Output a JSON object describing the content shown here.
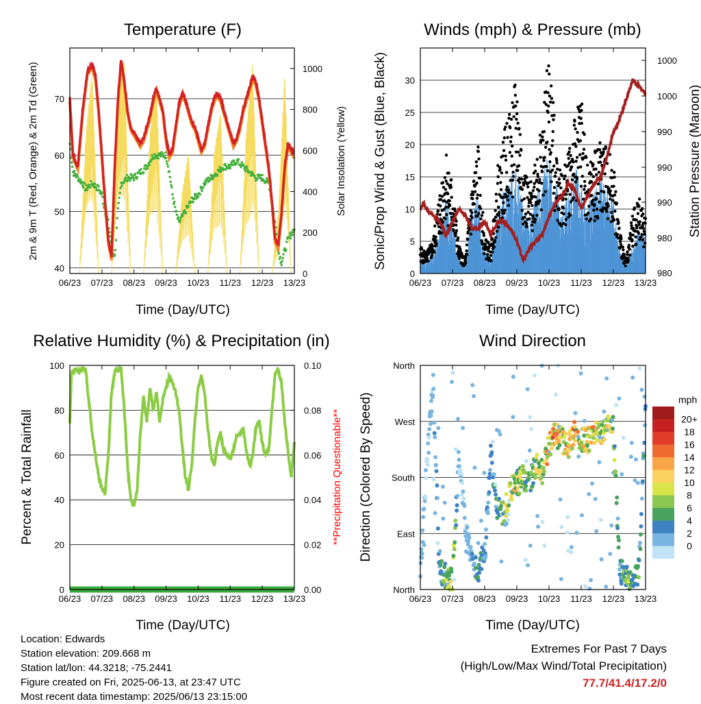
{
  "info": {
    "location": "Location: Edwards",
    "elevation": "Station elevation: 209.668 m",
    "latlon": "Station lat/lon: 44.3218; -75.2441",
    "created": "Figure created on Fri, 2025-06-13, at 23:47 UTC",
    "recent": "Most recent data timestamp: 2025/06/13 23:15:00"
  },
  "extremes": {
    "line1": "Extremes For Past 7 Days",
    "line2": "(High/Low/Max Wind/Total Precipitation)",
    "values": "77.7/41.4/17.2/0"
  },
  "colors": {
    "temp": "#d42222",
    "temp9m": "#f08a28",
    "dewpoint": "#44b03c",
    "solar": "#f5dc60",
    "wind": "#4e95d6",
    "gust": "#000000",
    "pressure": "#a32020",
    "rh": "#8ccc44",
    "precip": "#3aa83a",
    "questionable": "#ff0000"
  },
  "chart_data": [
    {
      "type": "line",
      "title": "Temperature (F)",
      "xlabel": "Time (Day/UTC)",
      "ylabel": "2m & 9m T (Red, Orange) & 2m Td (Green)",
      "ylabel_right": "Solar Insolation (Yellow)",
      "x_ticks": [
        "06/23",
        "07/23",
        "08/23",
        "09/23",
        "10/23",
        "11/23",
        "12/23",
        "13/23"
      ],
      "y_ticks": [
        "40",
        "50",
        "60",
        "70"
      ],
      "y2_ticks": [
        "0",
        "200",
        "400",
        "600",
        "800",
        "1000"
      ],
      "ylim": [
        39,
        79
      ],
      "y2lim": [
        0,
        1100
      ],
      "series": [
        {
          "name": "2m T",
          "x": [
            0,
            0.1,
            0.25,
            0.4,
            0.55,
            0.7,
            0.8,
            0.9,
            1.0,
            1.1,
            1.2,
            1.3,
            1.4,
            1.5,
            1.6,
            1.7,
            1.8,
            1.9,
            2.0,
            2.1,
            2.2,
            2.3,
            2.4,
            2.5,
            2.6,
            2.7,
            2.8,
            2.9,
            3.0,
            3.1,
            3.2,
            3.3,
            3.4,
            3.5,
            3.6,
            3.7,
            3.8,
            3.9,
            4.0,
            4.1,
            4.2,
            4.3,
            4.4,
            4.5,
            4.6,
            4.7,
            4.8,
            4.9,
            5.0,
            5.1,
            5.2,
            5.3,
            5.4,
            5.5,
            5.6,
            5.7,
            5.8,
            5.9,
            6.0,
            6.1,
            6.2,
            6.3,
            6.4,
            6.5,
            6.6,
            6.7,
            6.8,
            6.9,
            7.0
          ],
          "y": [
            70,
            60,
            58,
            68,
            75,
            76,
            74,
            68,
            60,
            52,
            45,
            42,
            58,
            70,
            77,
            73,
            68,
            65,
            64,
            63,
            62,
            63,
            65,
            67,
            70,
            72,
            70,
            68,
            63,
            60,
            61,
            65,
            69,
            71,
            70,
            68,
            66,
            65,
            63,
            61,
            62,
            65,
            68,
            70,
            71,
            70,
            68,
            66,
            64,
            62,
            63,
            65,
            68,
            70,
            72,
            74,
            73,
            70,
            66,
            62,
            58,
            52,
            45,
            44,
            50,
            58,
            62,
            61,
            60
          ]
        },
        {
          "name": "9m T",
          "x": [
            0,
            0.25,
            0.55,
            1.0,
            1.4,
            1.6,
            2.0,
            2.5,
            3.0,
            3.5,
            4.0,
            4.5,
            5.0,
            5.5,
            6.0,
            6.4,
            6.7,
            7.0
          ],
          "y": [
            70,
            58,
            73,
            60,
            56,
            76,
            63,
            67,
            63,
            70,
            63,
            70,
            63,
            72,
            65,
            46,
            58,
            60
          ]
        },
        {
          "name": "2m Td",
          "x": [
            0,
            0.1,
            0.25,
            0.4,
            0.5,
            0.7,
            0.9,
            1.0,
            1.1,
            1.2,
            1.3,
            1.4,
            1.5,
            1.6,
            1.8,
            2.0,
            2.2,
            2.4,
            2.6,
            2.8,
            3.0,
            3.1,
            3.2,
            3.3,
            3.4,
            3.6,
            3.8,
            4.0,
            4.2,
            4.4,
            4.6,
            4.8,
            5.0,
            5.2,
            5.4,
            5.6,
            5.8,
            6.0,
            6.2,
            6.3,
            6.4,
            6.5,
            6.6,
            6.7,
            6.8,
            7.0
          ],
          "y": [
            62,
            57,
            56,
            55,
            54,
            55,
            54,
            53,
            50,
            48,
            44,
            42,
            50,
            55,
            56,
            56,
            57,
            58,
            60,
            60,
            60,
            57,
            53,
            50,
            48,
            50,
            52,
            53,
            55,
            56,
            57,
            58,
            58,
            59,
            58,
            57,
            56,
            56,
            55,
            52,
            48,
            43,
            41,
            43,
            45,
            47
          ]
        },
        {
          "name": "Solar",
          "x": [
            0,
            0.3,
            0.5,
            0.7,
            0.9,
            1.3,
            1.5,
            1.7,
            1.9,
            2.3,
            2.5,
            2.7,
            2.9,
            3.3,
            3.5,
            3.7,
            3.9,
            4.3,
            4.5,
            4.7,
            4.9,
            5.3,
            5.5,
            5.7,
            5.9,
            6.3,
            6.5,
            6.7,
            6.9,
            7.0
          ],
          "y": [
            0,
            0,
            700,
            1000,
            0,
            0,
            900,
            1050,
            0,
            0,
            700,
            950,
            0,
            0,
            400,
            600,
            0,
            0,
            600,
            800,
            0,
            0,
            700,
            1050,
            0,
            0,
            300,
            1000,
            0,
            0
          ]
        }
      ]
    },
    {
      "type": "line",
      "title": "Winds (mph) & Pressure (mb)",
      "xlabel": "Time (Day/UTC)",
      "ylabel": "Sonic/Prop Wind & Gust (Blue, Black)",
      "ylabel_right": "Station Pressure (Maroon)",
      "x_ticks": [
        "06/23",
        "07/23",
        "08/23",
        "09/23",
        "10/23",
        "11/23",
        "12/23",
        "13/23"
      ],
      "y_ticks": [
        "0",
        "5",
        "10",
        "15",
        "20",
        "25",
        "30"
      ],
      "y2_ticks": [
        "980",
        "980",
        "990",
        "990",
        "990",
        "1000",
        "1000"
      ],
      "ylim": [
        0,
        35
      ],
      "series": [
        {
          "name": "Wind",
          "x": [
            0,
            0.2,
            0.4,
            0.6,
            0.8,
            1.0,
            1.2,
            1.4,
            1.6,
            1.8,
            2.0,
            2.2,
            2.4,
            2.6,
            2.8,
            3.0,
            3.2,
            3.4,
            3.6,
            3.8,
            4.0,
            4.2,
            4.4,
            4.6,
            4.8,
            5.0,
            5.2,
            5.4,
            5.6,
            5.8,
            6.0,
            6.2,
            6.4,
            6.6,
            6.8,
            7.0
          ],
          "y": [
            2,
            2,
            3,
            6,
            10,
            9,
            2,
            1,
            9,
            10,
            3,
            2,
            8,
            11,
            13,
            14,
            9,
            7,
            10,
            13,
            16,
            13,
            8,
            11,
            14,
            12,
            9,
            11,
            13,
            12,
            10,
            3,
            1,
            4,
            6,
            5
          ]
        },
        {
          "name": "Gust",
          "x": [
            0,
            0.2,
            0.4,
            0.6,
            0.8,
            1.0,
            1.2,
            1.4,
            1.6,
            1.8,
            2.0,
            2.2,
            2.4,
            2.6,
            2.8,
            3.0,
            3.2,
            3.4,
            3.6,
            3.8,
            4.0,
            4.2,
            4.4,
            4.6,
            4.8,
            5.0,
            5.2,
            5.4,
            5.6,
            5.8,
            6.0,
            6.2,
            6.4,
            6.6,
            6.8,
            7.0
          ],
          "y": [
            4,
            3,
            5,
            12,
            18,
            13,
            4,
            2,
            13,
            18,
            5,
            4,
            15,
            20,
            24,
            28,
            16,
            12,
            18,
            22,
            32,
            20,
            14,
            18,
            22,
            26,
            15,
            17,
            19,
            18,
            16,
            6,
            2,
            9,
            11,
            8
          ]
        },
        {
          "name": "Pressure",
          "x": [
            0,
            0.1,
            0.2,
            0.4,
            0.6,
            0.8,
            1.0,
            1.2,
            1.4,
            1.6,
            1.8,
            2.0,
            2.2,
            2.4,
            2.6,
            2.8,
            3.0,
            3.2,
            3.4,
            3.6,
            3.8,
            4.0,
            4.2,
            4.4,
            4.6,
            4.8,
            5.0,
            5.2,
            5.4,
            5.6,
            5.8,
            6.0,
            6.2,
            6.4,
            6.6,
            6.8,
            7.0
          ],
          "y": [
            10,
            11,
            10,
            9,
            8,
            6,
            8,
            10,
            9,
            7,
            7,
            8,
            6,
            8,
            8,
            7,
            5,
            2,
            4,
            5,
            6,
            9,
            11,
            12,
            14,
            13,
            10,
            12,
            14,
            15,
            18,
            22,
            24,
            27,
            30,
            29,
            28
          ]
        }
      ]
    },
    {
      "type": "line",
      "title": "Relative Humidity (%) & Precipitation (in)",
      "xlabel": "Time (Day/UTC)",
      "ylabel": "Percent & Total Rainfall",
      "ylabel_right": "**Precipitation Questionable**",
      "x_ticks": [
        "06/23",
        "07/23",
        "08/23",
        "09/23",
        "10/23",
        "11/23",
        "12/23",
        "13/23"
      ],
      "y_ticks": [
        "0",
        "20",
        "40",
        "60",
        "80",
        "100"
      ],
      "y2_ticks": [
        "0.00",
        "0.02",
        "0.04",
        "0.06",
        "0.08",
        "0.10"
      ],
      "ylim": [
        0,
        100
      ],
      "y2lim": [
        0,
        0.1
      ],
      "series": [
        {
          "name": "RH",
          "x": [
            0,
            0.05,
            0.15,
            0.3,
            0.5,
            0.55,
            0.7,
            0.9,
            1.0,
            1.1,
            1.2,
            1.3,
            1.4,
            1.5,
            1.6,
            1.7,
            1.8,
            1.9,
            2.0,
            2.1,
            2.2,
            2.3,
            2.4,
            2.5,
            2.6,
            2.7,
            2.8,
            2.9,
            3.0,
            3.1,
            3.2,
            3.3,
            3.4,
            3.5,
            3.6,
            3.7,
            3.8,
            3.9,
            4.0,
            4.1,
            4.2,
            4.3,
            4.4,
            4.5,
            4.6,
            4.7,
            4.8,
            4.9,
            5.0,
            5.1,
            5.2,
            5.3,
            5.4,
            5.5,
            5.6,
            5.7,
            5.8,
            5.9,
            6.0,
            6.1,
            6.2,
            6.3,
            6.4,
            6.5,
            6.6,
            6.7,
            6.8,
            6.9,
            7.0
          ],
          "y": [
            75,
            96,
            98,
            98,
            98,
            90,
            70,
            50,
            45,
            43,
            60,
            88,
            97,
            98,
            98,
            80,
            55,
            40,
            37,
            45,
            70,
            86,
            75,
            90,
            80,
            88,
            75,
            85,
            90,
            95,
            92,
            88,
            80,
            65,
            50,
            45,
            55,
            75,
            90,
            95,
            88,
            72,
            60,
            55,
            65,
            70,
            62,
            60,
            58,
            62,
            68,
            70,
            72,
            62,
            55,
            60,
            72,
            75,
            65,
            60,
            62,
            80,
            96,
            98,
            92,
            75,
            62,
            50,
            65
          ]
        },
        {
          "name": "Precip",
          "x": [
            0,
            7
          ],
          "y": [
            0,
            0
          ]
        }
      ]
    },
    {
      "type": "scatter",
      "title": "Wind Direction",
      "xlabel": "Time (Day/UTC)",
      "ylabel": "Direction (Colored By Speed)",
      "x_ticks": [
        "06/23",
        "07/23",
        "08/23",
        "09/23",
        "10/23",
        "11/23",
        "12/23",
        "13/23"
      ],
      "y_ticks": [
        "North",
        "East",
        "South",
        "West",
        "North"
      ],
      "ylim": [
        0,
        360
      ],
      "legend_title": "mph",
      "legend_labels": [
        "20+",
        "18",
        "16",
        "14",
        "12",
        "10",
        "8",
        "6",
        "4",
        "2",
        "0"
      ],
      "legend_colors": [
        "#9e1b1b",
        "#c62222",
        "#e03c28",
        "#f06a30",
        "#f9a547",
        "#fbd160",
        "#d9e34a",
        "#8cc653",
        "#47a35d",
        "#3e82c2",
        "#79b5e0",
        "#bfe3f5"
      ],
      "series": [
        {
          "name": "Direction",
          "x": [
            0,
            0.2,
            0.4,
            0.6,
            0.8,
            1.0,
            1.2,
            1.4,
            1.6,
            1.8,
            2.0,
            2.2,
            2.4,
            2.6,
            2.8,
            3.0,
            3.2,
            3.4,
            3.6,
            3.8,
            4.0,
            4.2,
            4.4,
            4.6,
            4.8,
            5.0,
            5.2,
            5.4,
            5.6,
            5.8,
            6.0,
            6.2,
            6.4,
            6.6,
            6.8,
            7.0
          ],
          "y": [
            20,
            200,
            330,
            30,
            20,
            15,
            210,
            100,
            40,
            30,
            60,
            220,
            130,
            120,
            160,
            170,
            180,
            170,
            200,
            190,
            230,
            250,
            240,
            230,
            250,
            240,
            240,
            250,
            250,
            260,
            260,
            30,
            20,
            20,
            30,
            300
          ],
          "speed": [
            2,
            1,
            2,
            4,
            8,
            10,
            1,
            1,
            3,
            6,
            4,
            3,
            6,
            8,
            12,
            10,
            8,
            6,
            10,
            10,
            14,
            14,
            10,
            12,
            14,
            12,
            10,
            12,
            12,
            12,
            10,
            4,
            8,
            6,
            6,
            4
          ]
        }
      ]
    }
  ]
}
